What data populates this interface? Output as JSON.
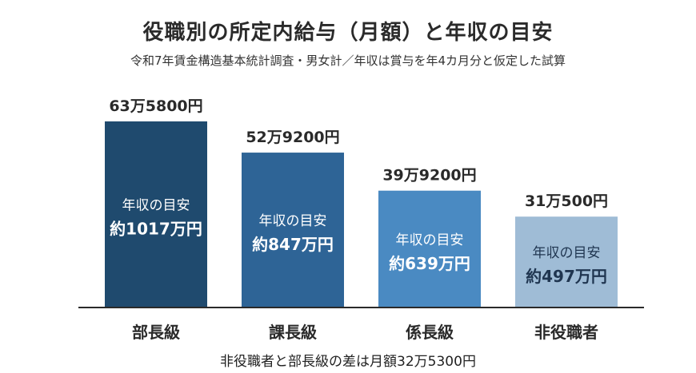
{
  "chart_data": {
    "type": "bar",
    "title": "役職別の所定内給与（月額）と年収の目安",
    "subtitle": "令和7年賃金構造基本統計調査・男女計／年収は賞与を年4カ月分と仮定した試算",
    "categories": [
      "部長級",
      "課長級",
      "係長級",
      "非役職者"
    ],
    "values": [
      635800,
      529200,
      399200,
      310500
    ],
    "value_labels": [
      "63万5800円",
      "52万9200円",
      "39万9200円",
      "31万500円"
    ],
    "inner_caption": "年収の目安",
    "annual_labels": [
      "約1017万円",
      "約847万円",
      "約639万円",
      "約497万円"
    ],
    "colors": [
      "#1f4a6e",
      "#2e6496",
      "#4a8ac2",
      "#9fbcd6"
    ],
    "ylim": [
      0,
      635800
    ],
    "grid": false,
    "note": "非役職者と部長級の差は月額32万5300円"
  }
}
